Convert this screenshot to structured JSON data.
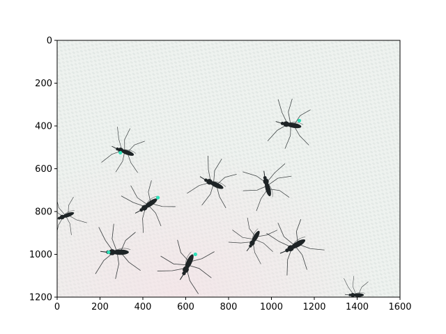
{
  "chart_data": {
    "type": "image",
    "title": "",
    "xlabel": "",
    "ylabel": "",
    "xlim": [
      0,
      1600
    ],
    "ylim": [
      1200,
      0
    ],
    "x_ticks": [
      0,
      200,
      400,
      600,
      800,
      1000,
      1200,
      1400,
      1600
    ],
    "y_ticks": [
      0,
      200,
      400,
      600,
      800,
      1000,
      1200
    ],
    "grid": false,
    "legend": "none",
    "background_color": "#eef2ef",
    "specimen_color": "#1e2426",
    "marker_color": "#2de0b8",
    "specimens": [
      {
        "x": 1090,
        "y": 395,
        "angle": 10,
        "scale": 1.1,
        "marked": true,
        "mx": 1130,
        "my": 375
      },
      {
        "x": 315,
        "y": 520,
        "angle": 20,
        "scale": 1.0,
        "marked": true,
        "mx": 295,
        "my": 525
      },
      {
        "x": 730,
        "y": 670,
        "angle": 25,
        "scale": 1.1,
        "marked": false
      },
      {
        "x": 980,
        "y": 680,
        "angle": 75,
        "scale": 1.1,
        "marked": false
      },
      {
        "x": 425,
        "y": 770,
        "angle": -35,
        "scale": 1.1,
        "marked": true,
        "mx": 470,
        "my": 735
      },
      {
        "x": 40,
        "y": 820,
        "angle": -20,
        "scale": 0.9,
        "marked": false
      },
      {
        "x": 280,
        "y": 990,
        "angle": 0,
        "scale": 1.2,
        "marked": true,
        "mx": 240,
        "my": 990
      },
      {
        "x": 610,
        "y": 1050,
        "angle": -65,
        "scale": 1.2,
        "marked": true,
        "mx": 645,
        "my": 1000
      },
      {
        "x": 920,
        "y": 930,
        "angle": -60,
        "scale": 1.0,
        "marked": false
      },
      {
        "x": 1110,
        "y": 960,
        "angle": -30,
        "scale": 1.2,
        "marked": false
      },
      {
        "x": 1395,
        "y": 1190,
        "angle": 0,
        "scale": 0.8,
        "marked": false
      }
    ]
  }
}
